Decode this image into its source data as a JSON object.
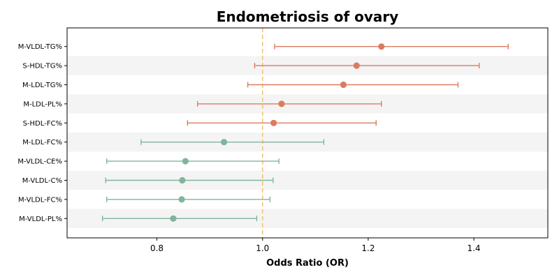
{
  "chart_data": {
    "type": "forest",
    "title": "Endometriosis of ovary",
    "xlabel": "Odds Ratio (OR)",
    "ylabel": "",
    "xlim": [
      0.63,
      1.54
    ],
    "xticks": [
      0.8,
      1.0,
      1.2,
      1.4
    ],
    "xtick_labels": [
      "0.8",
      "1.0",
      "1.2",
      "1.4"
    ],
    "reference_line": 1.0,
    "row_banding": true,
    "colors": {
      "risk": "#dd7b5f",
      "protective": "#80b59c",
      "reference": "#f2c26f",
      "band": "#f4f4f4"
    },
    "rows": [
      {
        "label": "M-VLDL-TG%",
        "or": 1.225,
        "lower": 1.023,
        "upper": 1.465,
        "group": "risk"
      },
      {
        "label": "S-HDL-TG%",
        "or": 1.178,
        "lower": 0.985,
        "upper": 1.41,
        "group": "risk"
      },
      {
        "label": "M-LDL-TG%",
        "or": 1.153,
        "lower": 0.972,
        "upper": 1.37,
        "group": "risk"
      },
      {
        "label": "M-LDL-PL%",
        "or": 1.036,
        "lower": 0.877,
        "upper": 1.225,
        "group": "risk"
      },
      {
        "label": "S-HDL-FC%",
        "or": 1.021,
        "lower": 0.858,
        "upper": 1.215,
        "group": "risk"
      },
      {
        "label": "M-LDL-FC%",
        "or": 0.927,
        "lower": 0.77,
        "upper": 1.116,
        "group": "protective"
      },
      {
        "label": "M-VLDL-CE%",
        "or": 0.854,
        "lower": 0.705,
        "upper": 1.031,
        "group": "protective"
      },
      {
        "label": "M-VLDL-C%",
        "or": 0.848,
        "lower": 0.703,
        "upper": 1.02,
        "group": "protective"
      },
      {
        "label": "M-VLDL-FC%",
        "or": 0.847,
        "lower": 0.705,
        "upper": 1.014,
        "group": "protective"
      },
      {
        "label": "M-VLDL-PL%",
        "or": 0.831,
        "lower": 0.697,
        "upper": 0.989,
        "group": "protective"
      }
    ]
  }
}
